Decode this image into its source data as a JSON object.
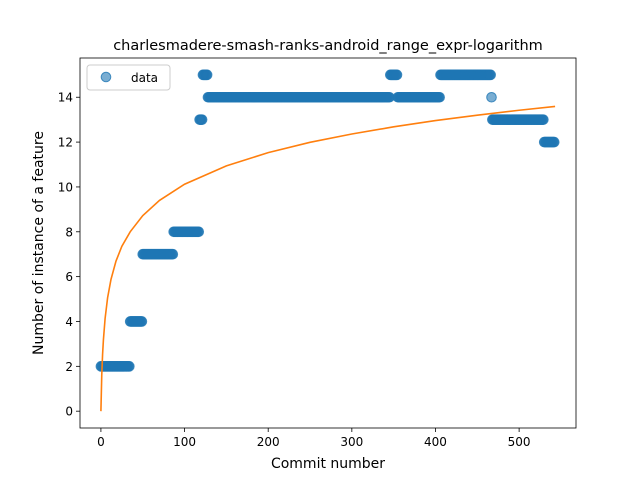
{
  "chart_data": {
    "type": "scatter",
    "title": "charlesmadere-smash-ranks-android_range_expr-logarithm",
    "xlabel": "Commit number",
    "ylabel": "Number of instance of a feature",
    "xlim": [
      -25,
      568
    ],
    "ylim": [
      -0.75,
      15.75
    ],
    "xticks": [
      0,
      100,
      200,
      300,
      400,
      500
    ],
    "yticks": [
      0,
      2,
      4,
      6,
      8,
      10,
      12,
      14
    ],
    "grid": false,
    "legend_position": "upper-left",
    "series": [
      {
        "name": "data",
        "kind": "scatter",
        "color": "#1f77b4",
        "segments": [
          {
            "x_start": 0,
            "x_end": 35,
            "y": 2
          },
          {
            "x_start": 35,
            "x_end": 50,
            "y": 4
          },
          {
            "x_start": 50,
            "x_end": 87,
            "y": 7
          },
          {
            "x_start": 87,
            "x_end": 118,
            "y": 8
          },
          {
            "x_start": 118,
            "x_end": 122,
            "y": 13
          },
          {
            "x_start": 122,
            "x_end": 128,
            "y": 15
          },
          {
            "x_start": 128,
            "x_end": 346,
            "y": 14
          },
          {
            "x_start": 346,
            "x_end": 355,
            "y": 15
          },
          {
            "x_start": 355,
            "x_end": 406,
            "y": 14
          },
          {
            "x_start": 406,
            "x_end": 467,
            "y": 15
          },
          {
            "x_start": 467,
            "x_end": 468,
            "y": 14
          },
          {
            "x_start": 468,
            "x_end": 530,
            "y": 13
          },
          {
            "x_start": 530,
            "x_end": 543,
            "y": 12
          }
        ]
      },
      {
        "kind": "line",
        "color": "#ff7f0e",
        "x": [
          0,
          1,
          2,
          3,
          5,
          8,
          12,
          18,
          25,
          35,
          50,
          70,
          100,
          150,
          200,
          250,
          300,
          350,
          400,
          450,
          500,
          543
        ],
        "y": [
          0,
          1.6,
          2.53,
          3.19,
          4.13,
          5.06,
          5.87,
          6.69,
          7.35,
          8.0,
          8.72,
          9.4,
          10.12,
          10.94,
          11.53,
          11.99,
          12.36,
          12.68,
          12.96,
          13.2,
          13.42,
          13.59
        ]
      }
    ]
  }
}
